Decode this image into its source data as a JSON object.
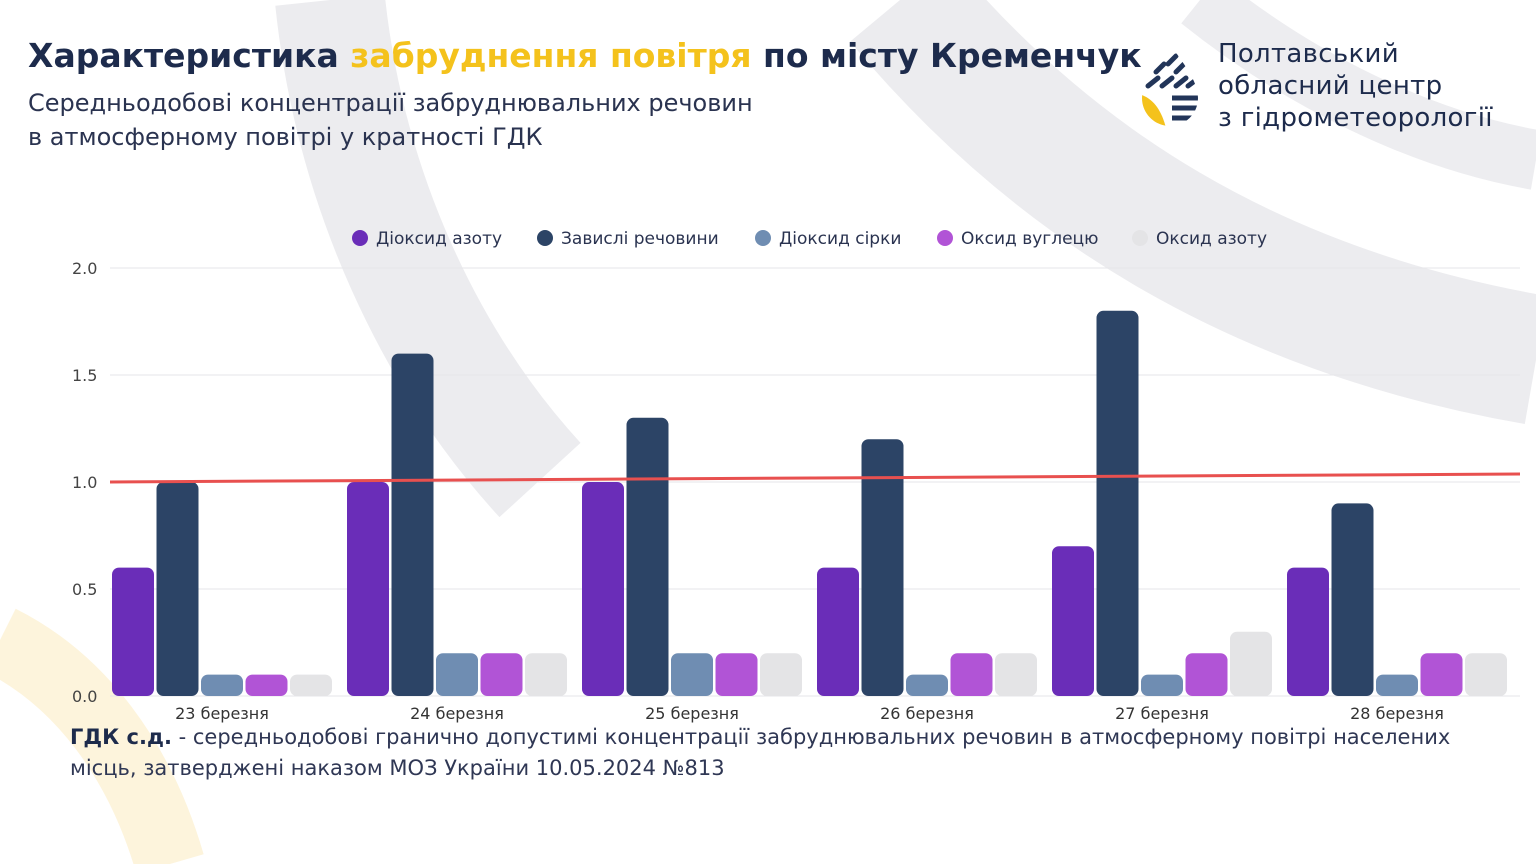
{
  "header": {
    "title_part1": "Характеристика ",
    "title_highlight": "забруднення повітря",
    "title_part2": " по місту Кременчук",
    "subtitle_line1": "Середньодобові концентрації забруднювальних речовин",
    "subtitle_line2": "в атмосферному повітрі у кратності ГДК",
    "highlight_color": "#f4c21c"
  },
  "organization": {
    "line1": "Полтавський",
    "line2": "обласний центр",
    "line3": "з гідрометеорології",
    "logo_icon": "drop-leaf-logo-icon"
  },
  "chart_data": {
    "type": "bar",
    "categories": [
      "23 березня",
      "24 березня",
      "25 березня",
      "26 березня",
      "27 березня",
      "28 березня"
    ],
    "series": [
      {
        "name": "Діоксид азоту",
        "color": "#6a2db8",
        "values": [
          0.6,
          1.0,
          1.0,
          0.6,
          0.7,
          0.6
        ]
      },
      {
        "name": "Завислі речовини",
        "color": "#2c4466",
        "values": [
          1.0,
          1.6,
          1.3,
          1.2,
          1.8,
          0.9
        ]
      },
      {
        "name": "Діоксид сірки",
        "color": "#6f8db2",
        "values": [
          0.1,
          0.2,
          0.2,
          0.1,
          0.1,
          0.1
        ]
      },
      {
        "name": "Оксид вуглецю",
        "color": "#b154d6",
        "values": [
          0.1,
          0.2,
          0.2,
          0.2,
          0.2,
          0.2
        ]
      },
      {
        "name": "Оксид азоту",
        "color": "#e4e4e6",
        "values": [
          0.1,
          0.2,
          0.2,
          0.2,
          0.3,
          0.2
        ]
      }
    ],
    "yticks": [
      "0.0",
      "0.5",
      "1.0",
      "1.5",
      "2.0"
    ],
    "ylim": [
      0,
      2.0
    ],
    "reference_line": {
      "value": 1.0,
      "color": "#e8504f"
    },
    "legend_position": "top-center",
    "grid": "horizontal"
  },
  "footnote": {
    "term": "ГДК с.д.",
    "text": " - середньодобові гранично допустимі концентрації забруднювальних речовин в атмосферному повітрі населених місць, затверджені наказом МОЗ України 10.05.2024 №813"
  }
}
